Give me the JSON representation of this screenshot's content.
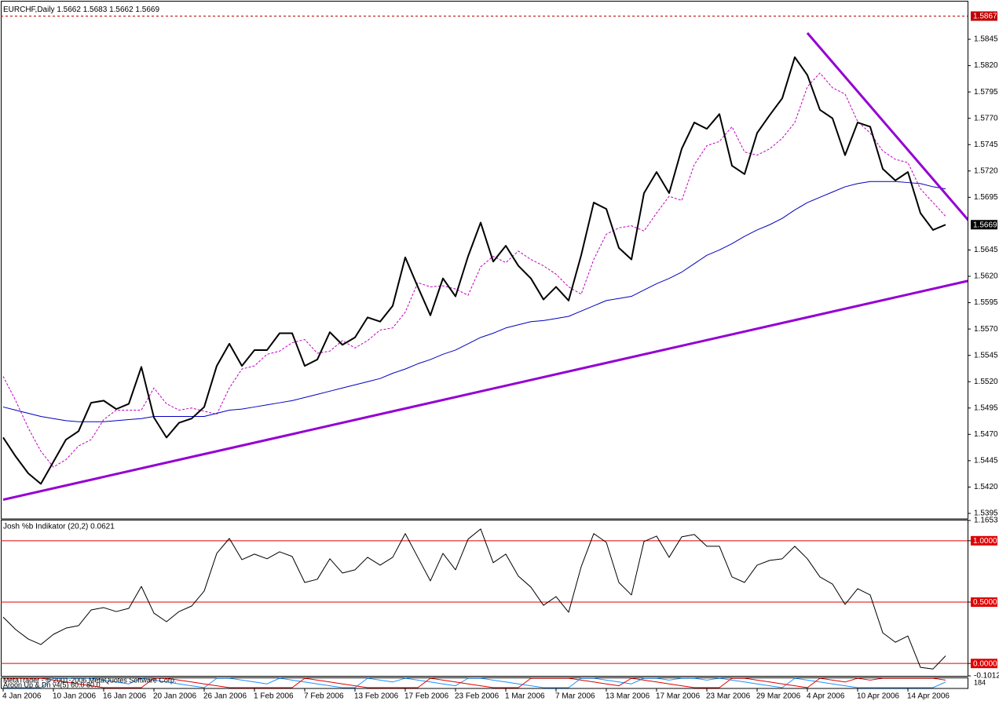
{
  "chart_data": [
    {
      "type": "line",
      "title": "EURCHF,Daily  1.5662 1.5683 1.5662 1.5669",
      "categories": [
        "4 Jan 2006",
        null,
        null,
        null,
        "10 Jan 2006",
        null,
        null,
        null,
        "16 Jan 2006",
        null,
        null,
        null,
        "20 Jan 2006",
        null,
        null,
        null,
        "26 Jan 2006",
        null,
        null,
        null,
        "1 Feb 2006",
        null,
        null,
        null,
        "7 Feb 2006",
        null,
        null,
        null,
        "13 Feb 2006",
        null,
        null,
        null,
        "17 Feb 2006",
        null,
        null,
        null,
        "23 Feb 2006",
        null,
        null,
        null,
        "1 Mar 2006",
        null,
        null,
        null,
        "7 Mar 2006",
        null,
        null,
        null,
        "13 Mar 2006",
        null,
        null,
        null,
        "17 Mar 2006",
        null,
        null,
        null,
        "23 Mar 2006",
        null,
        null,
        null,
        "29 Mar 2006",
        null,
        null,
        null,
        "4 Apr 2006",
        null,
        null,
        null,
        "10 Apr 2006",
        null,
        null,
        null,
        "14 Apr 2006",
        null,
        null,
        null
      ],
      "series": [
        {
          "color": "#c000c0",
          "dashed": true,
          "values": [
            1.5525,
            1.5502,
            1.5476,
            1.5454,
            1.5439,
            1.5446,
            1.5459,
            1.5465,
            1.5484,
            1.5493,
            1.5493,
            1.5493,
            1.5514,
            1.5499,
            1.5493,
            1.5495,
            1.5492,
            1.5489,
            1.5514,
            1.5532,
            1.5535,
            1.5546,
            1.5549,
            1.5557,
            1.556,
            1.5547,
            1.5549,
            1.5559,
            1.5552,
            1.5559,
            1.5569,
            1.5571,
            1.5586,
            1.5614,
            1.561,
            1.5611,
            1.5608,
            1.5602,
            1.5629,
            1.5639,
            1.5633,
            1.5644,
            1.5636,
            1.563,
            1.5622,
            1.561,
            1.5603,
            1.5636,
            1.566,
            1.5666,
            1.5668,
            1.5663,
            1.568,
            1.5696,
            1.5692,
            1.5726,
            1.5744,
            1.5748,
            1.5762,
            1.5738,
            1.5735,
            1.5741,
            1.5751,
            1.5766,
            1.58,
            1.5813,
            1.5799,
            1.5793,
            1.5767,
            1.5756,
            1.5739,
            1.5731,
            1.5728,
            1.5703,
            1.569,
            1.5677
          ]
        },
        {
          "color": "#0000c0",
          "dashed": false,
          "values": [
            1.5496,
            1.5493,
            1.549,
            1.5487,
            1.5485,
            1.5483,
            1.5482,
            1.5482,
            1.5482,
            1.5483,
            1.5484,
            1.5485,
            1.5487,
            1.5487,
            1.5487,
            1.5487,
            1.5487,
            1.549,
            1.5493,
            1.5494,
            1.5496,
            1.5498,
            1.55,
            1.5502,
            1.5505,
            1.5508,
            1.5511,
            1.5514,
            1.5517,
            1.552,
            1.5523,
            1.5528,
            1.5532,
            1.5537,
            1.5541,
            1.5546,
            1.555,
            1.5556,
            1.5562,
            1.5566,
            1.5571,
            1.5574,
            1.5577,
            1.5578,
            1.558,
            1.5582,
            1.5587,
            1.5592,
            1.5597,
            1.5599,
            1.5601,
            1.5607,
            1.5613,
            1.5618,
            1.5624,
            1.5632,
            1.564,
            1.5645,
            1.5651,
            1.5658,
            1.5664,
            1.5669,
            1.5675,
            1.5683,
            1.569,
            1.5695,
            1.57,
            1.5705,
            1.5708,
            1.571,
            1.571,
            1.571,
            1.5709,
            1.5708,
            1.5705,
            1.5703
          ]
        },
        {
          "color": "#000000",
          "dashed": false,
          "bold": true,
          "values": [
            1.5467,
            1.5449,
            1.5433,
            1.5423,
            1.5444,
            1.5465,
            1.5473,
            1.55,
            1.5502,
            1.5494,
            1.5499,
            1.5534,
            1.5486,
            1.5467,
            1.5481,
            1.5485,
            1.5496,
            1.5535,
            1.5556,
            1.5535,
            1.555,
            1.555,
            1.5566,
            1.5566,
            1.5535,
            1.5541,
            1.5567,
            1.5555,
            1.5562,
            1.5581,
            1.5577,
            1.5592,
            1.5638,
            1.561,
            1.5583,
            1.5618,
            1.5601,
            1.5639,
            1.5671,
            1.5634,
            1.5649,
            1.563,
            1.5618,
            1.5598,
            1.561,
            1.5597,
            1.564,
            1.569,
            1.5684,
            1.5647,
            1.5636,
            1.5699,
            1.5719,
            1.5699,
            1.5741,
            1.5766,
            1.576,
            1.5774,
            1.5725,
            1.5717,
            1.5756,
            1.5773,
            1.5789,
            1.5828,
            1.5811,
            1.5778,
            1.577,
            1.5735,
            1.5766,
            1.5762,
            1.5722,
            1.5711,
            1.5719,
            1.568,
            1.5664,
            1.5669
          ]
        }
      ],
      "trendlines": [
        {
          "color": "#9400d3",
          "x": [
            0,
            76.9
          ],
          "y": [
            1.5408,
            1.5616
          ]
        },
        {
          "color": "#9400d3",
          "x": [
            64,
            76.9
          ],
          "y": [
            1.5851,
            1.5672
          ]
        }
      ],
      "hlines": [
        {
          "value": 1.5867,
          "color": "#c00000"
        }
      ],
      "last_price": 1.5669,
      "ylim": [
        1.539,
        1.5879
      ],
      "yticks": [
        1.5395,
        {
          "value": 1.542,
          "label": "1.5420"
        },
        1.5445,
        {
          "value": 1.547,
          "label": "1.5470"
        },
        1.5495,
        {
          "value": 1.552,
          "label": "1.5520"
        },
        1.5545,
        {
          "value": 1.557,
          "label": "1.5570"
        },
        1.5595,
        {
          "value": 1.562,
          "label": "1.5620"
        },
        1.5645,
        1.5695,
        {
          "value": 1.572,
          "label": "1.5720"
        },
        1.5745,
        {
          "value": 1.577,
          "label": "1.5770"
        },
        1.5795,
        {
          "value": 1.582,
          "label": "1.5820"
        },
        1.5845
      ]
    },
    {
      "type": "line",
      "title": "Josh %b Indikator (20,2) 0.0621",
      "series": [
        {
          "color": "#000000",
          "dashed": false,
          "values": [
            0.378,
            0.276,
            0.199,
            0.154,
            0.237,
            0.288,
            0.308,
            0.436,
            0.455,
            0.423,
            0.449,
            0.628,
            0.41,
            0.34,
            0.423,
            0.468,
            0.59,
            0.897,
            1.019,
            0.846,
            0.891,
            0.853,
            0.91,
            0.872,
            0.66,
            0.686,
            0.853,
            0.737,
            0.763,
            0.865,
            0.801,
            0.865,
            1.058,
            0.865,
            0.673,
            0.897,
            0.763,
            1.013,
            1.096,
            0.821,
            0.891,
            0.712,
            0.622,
            0.474,
            0.545,
            0.417,
            0.788,
            1.058,
            0.987,
            0.66,
            0.558,
            0.994,
            1.038,
            0.865,
            1.032,
            1.051,
            0.955,
            0.955,
            0.705,
            0.66,
            0.801,
            0.84,
            0.853,
            0.955,
            0.853,
            0.705,
            0.647,
            0.481,
            0.609,
            0.558,
            0.25,
            0.173,
            0.224,
            -0.032,
            -0.045,
            0.0621
          ]
        }
      ],
      "levels": [
        {
          "value": 1,
          "label": "1.0000",
          "color": "#e00000"
        },
        {
          "value": 0.5,
          "label": "0.5000",
          "color": "#e00000"
        },
        {
          "value": 0,
          "label": "0.0000",
          "color": "#e00000"
        }
      ],
      "ylim": [
        -0.1012,
        1.1653
      ],
      "yticks": [
        1.1653,
        -0.1012
      ]
    },
    {
      "type": "line",
      "title": "Aroon Up & Dn v4(5) 60.0 80.0",
      "copyright": "MetaTrader - © 2001-2006 MetaQuotes Software Corp.",
      "scale_label": "184",
      "series": [
        {
          "color": "#1e90ff",
          "dashed": false,
          "values": [
            0,
            0,
            0,
            0,
            100,
            100,
            100,
            100,
            80,
            60,
            40,
            100,
            80,
            60,
            40,
            20,
            0,
            100,
            100,
            80,
            60,
            40,
            100,
            80,
            60,
            40,
            20,
            0,
            0,
            100,
            80,
            60,
            100,
            80,
            60,
            40,
            20,
            100,
            100,
            80,
            60,
            40,
            20,
            0,
            0,
            0,
            100,
            100,
            80,
            60,
            40,
            100,
            100,
            80,
            100,
            100,
            80,
            100,
            80,
            60,
            40,
            20,
            0,
            100,
            80,
            60,
            40,
            20,
            0,
            0,
            0,
            0,
            0,
            0,
            0,
            60
          ]
        },
        {
          "color": "#e00000",
          "dashed": false,
          "values": [
            100,
            100,
            100,
            100,
            80,
            60,
            40,
            20,
            0,
            0,
            0,
            0,
            100,
            100,
            80,
            60,
            40,
            20,
            0,
            0,
            0,
            0,
            0,
            0,
            100,
            80,
            60,
            40,
            20,
            0,
            0,
            0,
            0,
            0,
            100,
            80,
            60,
            40,
            20,
            0,
            0,
            0,
            100,
            100,
            100,
            100,
            80,
            60,
            40,
            20,
            100,
            80,
            60,
            40,
            20,
            0,
            0,
            0,
            100,
            100,
            80,
            60,
            40,
            20,
            0,
            100,
            80,
            60,
            100,
            80,
            100,
            100,
            100,
            100,
            100,
            80
          ]
        }
      ],
      "ylim": [
        0,
        100
      ]
    }
  ]
}
